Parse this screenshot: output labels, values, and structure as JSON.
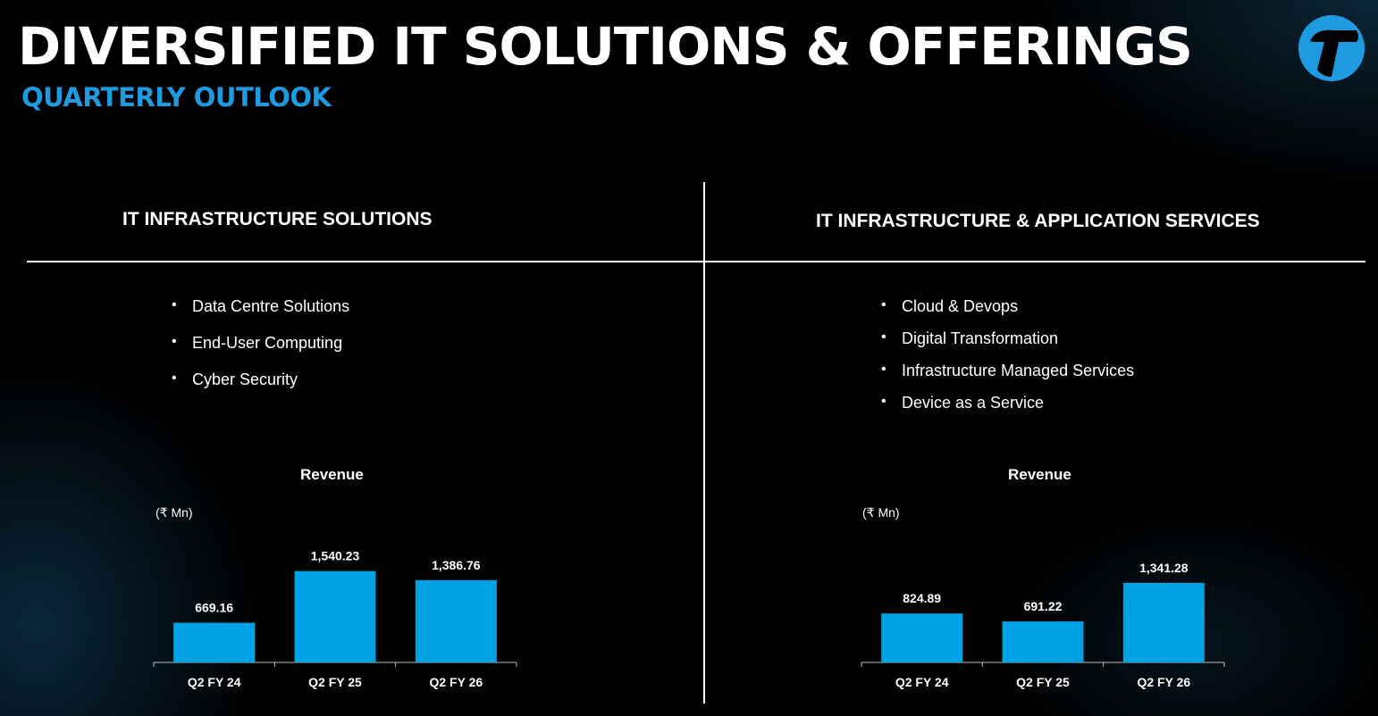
{
  "header": {
    "title": "DIVERSIFIED IT SOLUTIONS & OFFERINGS",
    "subtitle": "QUARTERLY OUTLOOK"
  },
  "colors": {
    "accent": "#1e9be0",
    "bar": "#00a2e3",
    "axis": "#bbbbbb",
    "background": "#000000"
  },
  "logo": {
    "icon": "brand-logo-icon"
  },
  "left_section": {
    "heading": "IT INFRASTRUCTURE SOLUTIONS",
    "bullets": [
      "Data Centre Solutions",
      "End-User Computing",
      "Cyber Security"
    ]
  },
  "right_section": {
    "heading": "IT INFRASTRUCTURE & APPLICATION SERVICES",
    "bullets": [
      "Cloud & Devops",
      "Digital Transformation",
      "Infrastructure Managed Services",
      "Device as a Service"
    ]
  },
  "chart_data": [
    {
      "type": "bar",
      "title": "Revenue",
      "unit": "(₹ Mn)",
      "categories": [
        "Q2 FY 24",
        "Q2 FY 25",
        "Q2 FY 26"
      ],
      "values": [
        669.16,
        1540.23,
        1386.76
      ],
      "value_labels": [
        "669.16",
        "1,540.23",
        "1,386.76"
      ],
      "ylim": [
        0,
        1700
      ],
      "grid": false,
      "legend": "none"
    },
    {
      "type": "bar",
      "title": "Revenue",
      "unit": "(₹ Mn)",
      "categories": [
        "Q2 FY 24",
        "Q2 FY 25",
        "Q2 FY 26"
      ],
      "values": [
        824.89,
        691.22,
        1341.28
      ],
      "value_labels": [
        "824.89",
        "691.22",
        "1,341.28"
      ],
      "ylim": [
        0,
        1700
      ],
      "grid": false,
      "legend": "none"
    }
  ]
}
